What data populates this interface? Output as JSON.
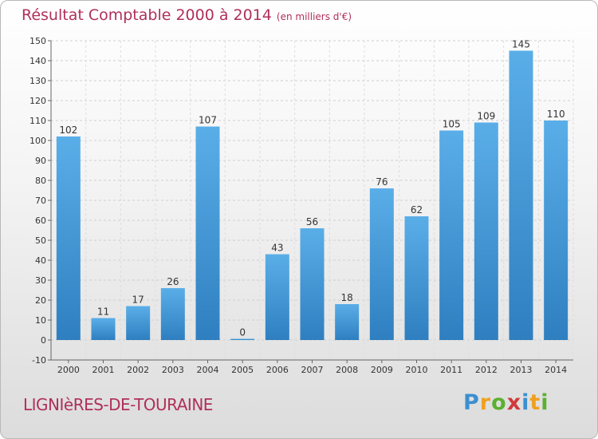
{
  "header": {
    "title": "Résultat Comptable 2000 à 2014",
    "unit": "(en milliers d'€)"
  },
  "footer": {
    "place": "LIGNIèRES-DE-TOURAINE"
  },
  "logo": {
    "letters": [
      {
        "ch": "P",
        "color": "#3c8fd0"
      },
      {
        "ch": "r",
        "color": "#f0a020"
      },
      {
        "ch": "o",
        "color": "#5bb030"
      },
      {
        "ch": "x",
        "color": "#d03a3a"
      },
      {
        "ch": "i",
        "color": "#3c8fd0"
      },
      {
        "ch": "t",
        "color": "#f0a020"
      },
      {
        "ch": "i",
        "color": "#5bb030"
      }
    ]
  },
  "chart_data": {
    "type": "bar",
    "title": "Résultat Comptable 2000 à 2014",
    "categories": [
      "2000",
      "2001",
      "2002",
      "2003",
      "2004",
      "2005",
      "2006",
      "2007",
      "2008",
      "2009",
      "2010",
      "2011",
      "2012",
      "2013",
      "2014"
    ],
    "values": [
      102,
      11,
      17,
      26,
      107,
      0,
      43,
      56,
      18,
      76,
      62,
      105,
      109,
      145,
      110
    ],
    "ylim": [
      -10,
      150
    ],
    "yticks": [
      -10,
      0,
      10,
      20,
      30,
      40,
      50,
      60,
      70,
      80,
      90,
      100,
      110,
      120,
      130,
      140,
      150
    ],
    "grid": true,
    "bar_color": "#4a9ede"
  }
}
